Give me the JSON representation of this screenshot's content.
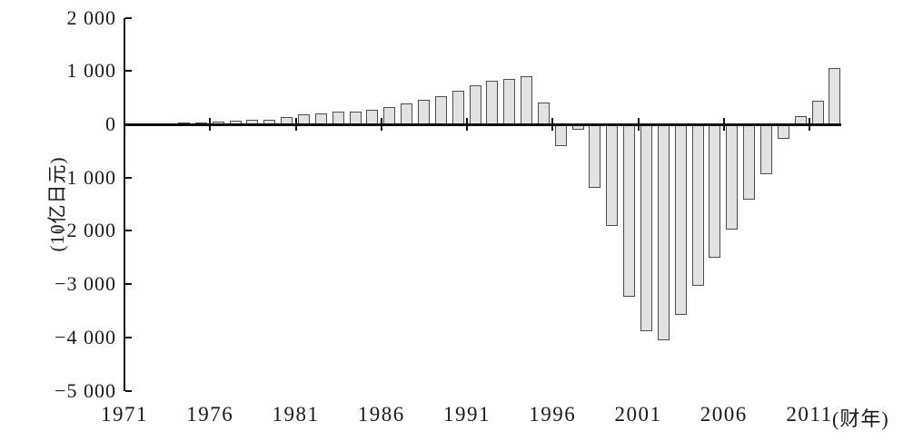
{
  "chart_data": {
    "type": "bar",
    "title": "",
    "xlabel": "(财年)",
    "ylabel": "(10亿日元)",
    "x": [
      1971,
      1972,
      1973,
      1974,
      1975,
      1976,
      1977,
      1978,
      1979,
      1980,
      1981,
      1982,
      1983,
      1984,
      1985,
      1986,
      1987,
      1988,
      1989,
      1990,
      1991,
      1992,
      1993,
      1994,
      1995,
      1996,
      1997,
      1998,
      1999,
      2000,
      2001,
      2002,
      2003,
      2004,
      2005,
      2006,
      2007,
      2008,
      2009,
      2010,
      2011,
      2012
    ],
    "values": [
      5,
      10,
      20,
      30,
      40,
      55,
      65,
      80,
      90,
      135,
      180,
      200,
      235,
      245,
      265,
      330,
      385,
      455,
      530,
      625,
      740,
      815,
      855,
      900,
      410,
      -410,
      -100,
      -1200,
      -1900,
      -3230,
      -3880,
      -4050,
      -3570,
      -3030,
      -2510,
      -1980,
      -1420,
      -930,
      -270,
      150,
      445,
      1050
    ],
    "ylim": [
      -5000,
      2000
    ],
    "grid": false,
    "legend": "none",
    "y_ticks": [
      {
        "value": 2000,
        "label": "2 000"
      },
      {
        "value": 1000,
        "label": "1 000"
      },
      {
        "value": 0,
        "label": "0"
      },
      {
        "value": -1000,
        "label": "−1 000"
      },
      {
        "value": -2000,
        "label": "−2 000"
      },
      {
        "value": -3000,
        "label": "−3 000"
      },
      {
        "value": -4000,
        "label": "−4 000"
      },
      {
        "value": -5000,
        "label": "−5 000"
      }
    ],
    "x_ticks": [
      {
        "value": 1971,
        "label": "1971"
      },
      {
        "value": 1976,
        "label": "1976"
      },
      {
        "value": 1981,
        "label": "1981"
      },
      {
        "value": 1986,
        "label": "1986"
      },
      {
        "value": 1991,
        "label": "1991"
      },
      {
        "value": 1996,
        "label": "1996"
      },
      {
        "value": 2001,
        "label": "2001"
      },
      {
        "value": 2006,
        "label": "2006"
      },
      {
        "value": 2011,
        "label": "2011"
      }
    ],
    "colors": {
      "bar_fill": "#e2e2e2",
      "bar_border": "#4d4d4d",
      "axis": "#111111",
      "text": "#1a1a1a",
      "background": "#ffffff"
    }
  }
}
